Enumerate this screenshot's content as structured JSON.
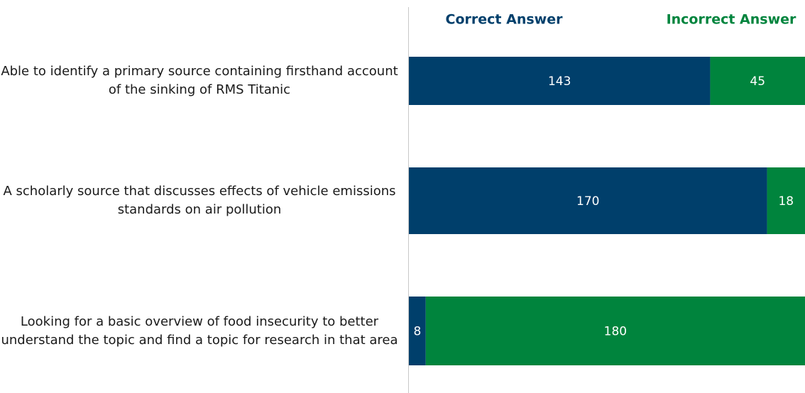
{
  "chart_data": {
    "type": "stacked-bar-horizontal",
    "categories": [
      "Able to identify a primary source containing firsthand account of the sinking of RMS Titanic",
      "A scholarly source that discusses effects of vehicle emissions standards on air pollution",
      "Looking for a basic overview of food insecurity to better understand the topic and find a topic for research in that area"
    ],
    "series": [
      {
        "name": "Correct Answer",
        "color": "#003f6b",
        "values": [
          143,
          170,
          8
        ]
      },
      {
        "name": "Incorrect Answer",
        "color": "#00843d",
        "values": [
          45,
          18,
          180
        ]
      }
    ],
    "legend": "top"
  }
}
